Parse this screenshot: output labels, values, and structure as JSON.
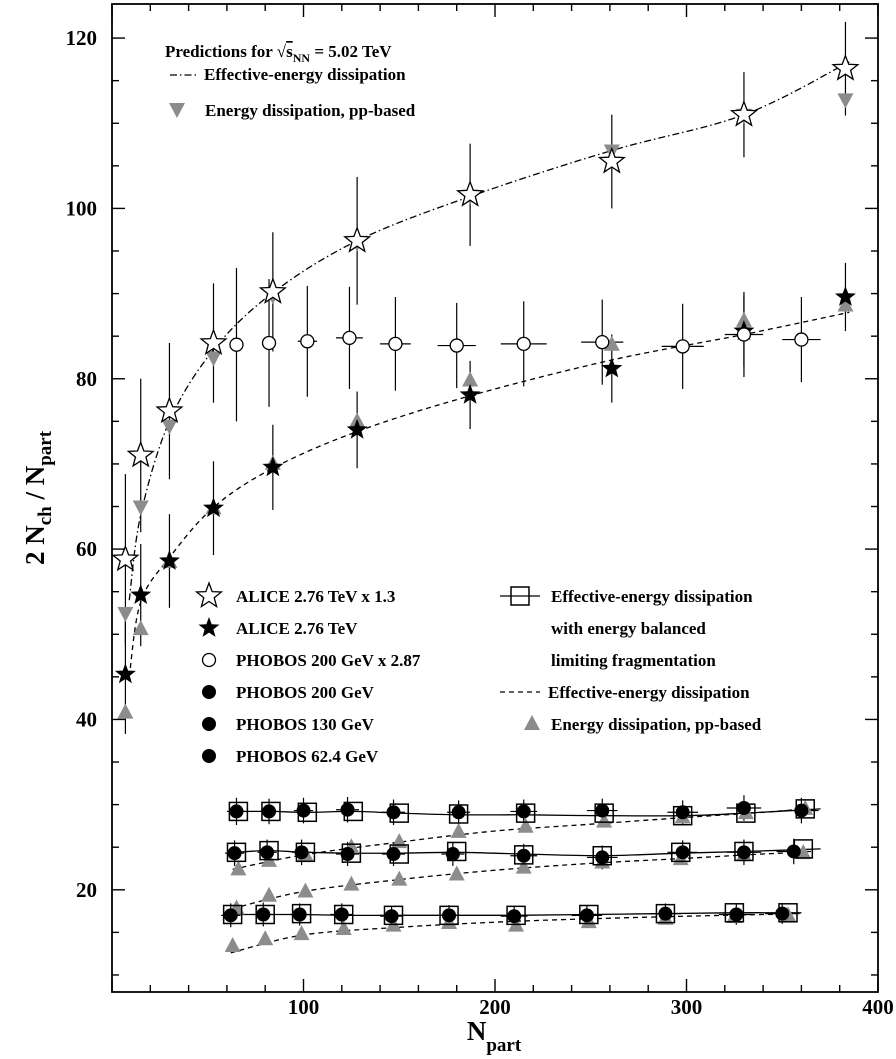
{
  "chart_data": {
    "type": "scatter",
    "title": "",
    "xlabel_main": "N",
    "xlabel_sub": "part",
    "ylabel_parts": [
      "2 N",
      "ch",
      " / N",
      "part"
    ],
    "xlim": [
      0,
      400
    ],
    "ylim": [
      8,
      124
    ],
    "x_ticks": [
      100,
      200,
      300,
      400
    ],
    "y_ticks": [
      20,
      40,
      60,
      80,
      100,
      120
    ],
    "grid": false,
    "annotation": {
      "prefix": "Predictions for ",
      "sqrt": "√",
      "s": "s",
      "sub": "NN",
      "suffix": " = 5.02 TeV"
    },
    "legend_top": [
      {
        "label": "Effective-energy dissipation",
        "marker": "dashdot"
      },
      {
        "label": "Energy dissipation, pp-based",
        "marker": "triangle-down-gray"
      }
    ],
    "legend_bottom_left": [
      {
        "label": "ALICE 2.76 TeV x 1.3",
        "marker": "open-star"
      },
      {
        "label": "ALICE 2.76 TeV",
        "marker": "filled-star"
      },
      {
        "label": "PHOBOS 200 GeV x 2.87",
        "marker": "open-circle"
      },
      {
        "label": "PHOBOS 200 GeV",
        "marker": "filled-circle"
      },
      {
        "label": "PHOBOS 130 GeV",
        "marker": "filled-circle"
      },
      {
        "label": "PHOBOS 62.4 GeV",
        "marker": "filled-circle"
      }
    ],
    "legend_bottom_right": [
      {
        "lines": [
          "Effective-energy dissipation",
          "with energy balanced",
          "limiting fragmentation"
        ],
        "marker": "open-square-line"
      },
      {
        "lines": [
          "Effective-energy dissipation"
        ],
        "marker": "dashed"
      },
      {
        "lines": [
          "Energy dissipation, pp-based"
        ],
        "marker": "triangle-up-gray"
      }
    ],
    "series": [
      {
        "name": "ALICE 2.76 TeV x 1.3",
        "marker": "open-star",
        "x": [
          7,
          15,
          30,
          53,
          84,
          128,
          187,
          261,
          330,
          383
        ],
        "y": [
          58.8,
          71,
          76.2,
          84.2,
          90.2,
          96.2,
          101.6,
          105.5,
          111,
          116.4
        ],
        "yerr": [
          10,
          9,
          8,
          7,
          7,
          7.5,
          6,
          5.5,
          5,
          5.5
        ]
      },
      {
        "name": "ALICE 2.76 TeV",
        "marker": "filled-star",
        "x": [
          7,
          15,
          30,
          53,
          84,
          128,
          187,
          261,
          330,
          383
        ],
        "y": [
          45.3,
          54.6,
          58.6,
          64.8,
          69.6,
          74,
          78.1,
          81.2,
          85.6,
          89.6
        ],
        "yerr": [
          7,
          6,
          5.5,
          5.5,
          5,
          4.5,
          4,
          4,
          4.2,
          4
        ]
      },
      {
        "name": "PHOBOS 200 GeV x 2.87",
        "marker": "open-circle",
        "x": [
          65,
          82,
          102,
          124,
          148,
          180,
          215,
          256,
          298,
          330,
          360
        ],
        "y": [
          84,
          84.2,
          84.4,
          84.8,
          84.1,
          83.9,
          84.1,
          84.3,
          83.8,
          85.2,
          84.6
        ],
        "yerr": [
          9,
          7.5,
          6.5,
          6,
          5.5,
          5,
          5,
          5,
          5,
          5,
          5
        ],
        "xerr": [
          3,
          3,
          5,
          7,
          8,
          10,
          12,
          11,
          11,
          10,
          10
        ]
      },
      {
        "name": "PHOBOS 200 GeV",
        "marker": "filled-circle",
        "x": [
          65,
          82,
          100,
          123,
          147,
          181,
          215,
          256,
          298,
          330,
          360
        ],
        "y": [
          29.2,
          29.2,
          29.3,
          29.4,
          29.1,
          29.1,
          29.2,
          29.3,
          29.1,
          29.6,
          29.3
        ],
        "yerr": [
          1.6,
          1.5,
          1.5,
          1.5,
          1.5,
          1.4,
          1.4,
          1.4,
          1.4,
          1.5,
          1.5
        ],
        "xerr": [
          5,
          5,
          5,
          6,
          6,
          6,
          7,
          8,
          8,
          9,
          9
        ]
      },
      {
        "name": "PHOBOS 130 GeV",
        "marker": "filled-circle",
        "x": [
          64,
          81,
          99,
          123,
          147,
          178,
          215,
          256,
          298,
          330,
          356
        ],
        "y": [
          24.3,
          24.4,
          24.4,
          24.2,
          24.2,
          24.2,
          24,
          23.8,
          24.4,
          24.4,
          24.5
        ],
        "yerr": [
          1.5,
          1.5,
          1.5,
          1.4,
          1.4,
          1.4,
          1.4,
          1.4,
          1.4,
          1.5,
          1.5
        ],
        "xerr": [
          5,
          5,
          5,
          6,
          6,
          6,
          7,
          8,
          8,
          9,
          9
        ]
      },
      {
        "name": "PHOBOS 62.4 GeV",
        "marker": "filled-circle",
        "x": [
          62,
          79,
          98,
          120,
          146,
          176,
          210,
          248,
          289,
          326,
          350
        ],
        "y": [
          17,
          17.1,
          17.1,
          17.1,
          16.9,
          17,
          16.9,
          17,
          17.2,
          17.1,
          17.2
        ],
        "yerr": [
          1.4,
          1.4,
          1.3,
          1.3,
          1.2,
          1.2,
          1.2,
          1.2,
          1.2,
          1.2,
          1.2
        ],
        "xerr": [
          5,
          5,
          5,
          6,
          6,
          6,
          7,
          8,
          8,
          9,
          9
        ]
      },
      {
        "marker": "open-square",
        "x": [
          66,
          83,
          102,
          126,
          150,
          181,
          216,
          257,
          298,
          331,
          362
        ],
        "y": [
          29.2,
          29.2,
          29.1,
          29.2,
          29,
          28.9,
          29,
          29,
          28.7,
          29,
          29.5
        ]
      },
      {
        "marker": "open-square",
        "x": [
          65,
          82,
          101,
          125,
          150,
          180,
          215,
          256,
          297,
          330,
          361
        ],
        "y": [
          24.4,
          24.6,
          24.4,
          24.3,
          24.2,
          24.5,
          24.1,
          24,
          24.4,
          24.5,
          24.8
        ]
      },
      {
        "marker": "open-square",
        "x": [
          63,
          80,
          99,
          121,
          147,
          176,
          211,
          249,
          289,
          325,
          353
        ],
        "y": [
          17.1,
          17.1,
          17.2,
          17.1,
          17,
          17,
          17,
          17.1,
          17.2,
          17.3,
          17.3
        ]
      },
      {
        "marker": "triangle-down-gray",
        "x": [
          7,
          15,
          30,
          53,
          84,
          128,
          187,
          261,
          330,
          383
        ],
        "y": [
          52.5,
          65,
          74.5,
          82.5,
          89.8,
          96,
          101.5,
          106.8,
          111,
          112.8
        ]
      },
      {
        "marker": "triangle-up-gray",
        "x": [
          7,
          15,
          30,
          53,
          84,
          128,
          187,
          261,
          330,
          383
        ],
        "y": [
          40.8,
          50.6,
          58.5,
          64.8,
          70,
          75,
          79.8,
          84,
          86.8,
          88.6
        ]
      },
      {
        "marker": "triangle-up-gray",
        "x": [
          66,
          82,
          101,
          125,
          150,
          181,
          216,
          257,
          298,
          331,
          362
        ],
        "y": [
          22.4,
          23.4,
          24.1,
          25,
          25.6,
          26.8,
          27.4,
          28,
          28.5,
          29,
          29.5
        ]
      },
      {
        "marker": "triangle-up-gray",
        "x": [
          65,
          82,
          101,
          125,
          150,
          180,
          215,
          256,
          297,
          330,
          361
        ],
        "y": [
          17.8,
          19.3,
          19.8,
          20.6,
          21.2,
          21.8,
          22.6,
          23.2,
          23.6,
          24.1,
          24.3
        ]
      },
      {
        "marker": "triangle-up-gray",
        "x": [
          63,
          80,
          99,
          121,
          147,
          176,
          211,
          249,
          289,
          325,
          353
        ],
        "y": [
          13.4,
          14.2,
          14.8,
          15.4,
          15.8,
          16.1,
          15.8,
          16.2,
          16.6,
          16.8,
          17
        ]
      }
    ],
    "curves": [
      {
        "style": "dashdot",
        "x": [
          9,
          15,
          30,
          53,
          84,
          128,
          187,
          261,
          330,
          385
        ],
        "y": [
          54,
          64,
          75,
          83.4,
          90.1,
          96.2,
          101.4,
          106.8,
          111,
          117.2
        ]
      },
      {
        "style": "dashed",
        "x": [
          9,
          15,
          30,
          53,
          84,
          128,
          187,
          261,
          330,
          385
        ],
        "y": [
          45,
          53.8,
          59,
          64.9,
          69.5,
          73.8,
          78,
          82.2,
          85.2,
          87.8
        ]
      },
      {
        "style": "dashed",
        "x": [
          63,
          100,
          150,
          200,
          250,
          300,
          340,
          362
        ],
        "y": [
          22.4,
          24.1,
          25.6,
          26.9,
          27.7,
          28.5,
          29.1,
          29.5
        ]
      },
      {
        "style": "dashed",
        "x": [
          63,
          100,
          150,
          200,
          250,
          300,
          340,
          362
        ],
        "y": [
          17.8,
          19.8,
          21.2,
          22.3,
          23.1,
          23.7,
          24.2,
          24.4
        ]
      },
      {
        "style": "dashed",
        "x": [
          62,
          100,
          150,
          200,
          250,
          300,
          340,
          353
        ],
        "y": [
          12.6,
          14.7,
          15.6,
          16.2,
          16.6,
          16.9,
          17.1,
          17.1
        ]
      },
      {
        "style": "solid",
        "x": [
          66,
          83,
          102,
          126,
          150,
          181,
          216,
          257,
          298,
          331,
          370
        ],
        "y": [
          29.2,
          29.2,
          29.1,
          29.2,
          29.0,
          28.8,
          28.8,
          28.7,
          28.7,
          29.0,
          29.5
        ]
      },
      {
        "style": "solid",
        "x": [
          65,
          82,
          101,
          125,
          150,
          180,
          215,
          256,
          297,
          330,
          370
        ],
        "y": [
          24.4,
          24.6,
          24.4,
          24.3,
          24.3,
          24.4,
          24.2,
          24.0,
          24.3,
          24.5,
          24.8
        ]
      },
      {
        "style": "solid",
        "x": [
          63,
          80,
          99,
          121,
          147,
          176,
          211,
          249,
          289,
          325,
          360
        ],
        "y": [
          17.1,
          17.1,
          17.1,
          17.0,
          17.0,
          17.0,
          17.0,
          17.1,
          17.2,
          17.3,
          17.3
        ]
      }
    ]
  }
}
